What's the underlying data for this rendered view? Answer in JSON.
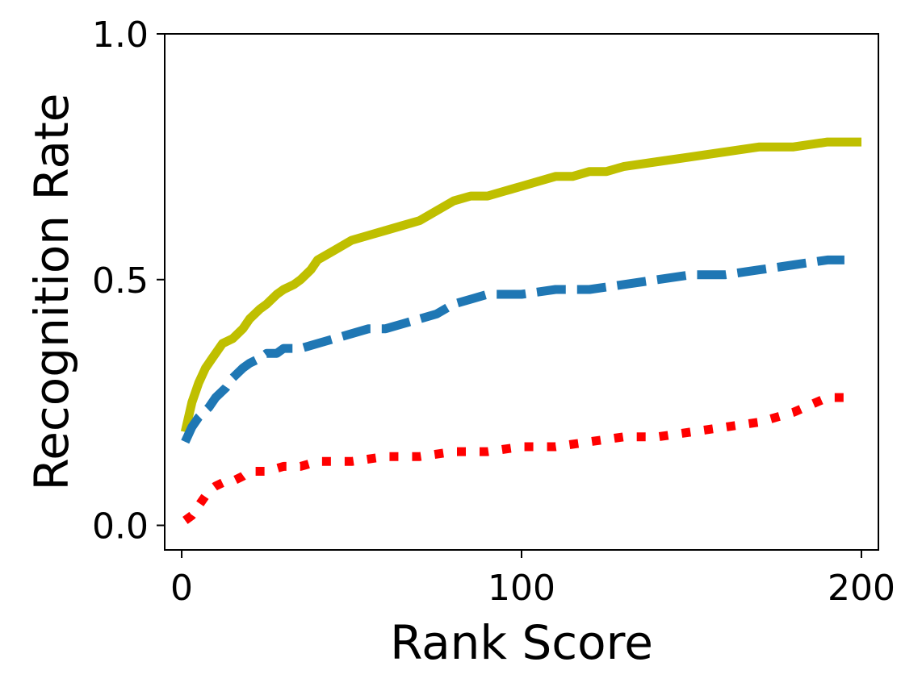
{
  "chart_data": {
    "type": "line",
    "title": "",
    "xlabel": "Rank Score",
    "ylabel": "Recognition Rate",
    "xlim": [
      -5,
      205
    ],
    "ylim": [
      -0.05,
      1.0
    ],
    "xticks": [
      0,
      100,
      200
    ],
    "xtick_labels": [
      "0",
      "100",
      "200"
    ],
    "yticks": [
      0.0,
      0.5,
      1.0
    ],
    "ytick_labels": [
      "0.0",
      "0.5",
      "1.0"
    ],
    "grid": false,
    "legend": "none",
    "series": [
      {
        "color": "#bfbf00",
        "style": "solid",
        "x": [
          1,
          3,
          5,
          7,
          9,
          12,
          15,
          18,
          20,
          23,
          25,
          28,
          30,
          33,
          35,
          38,
          40,
          45,
          50,
          55,
          60,
          65,
          70,
          75,
          80,
          85,
          90,
          95,
          100,
          105,
          110,
          115,
          120,
          125,
          130,
          140,
          150,
          160,
          170,
          180,
          190,
          200
        ],
        "y": [
          0.19,
          0.25,
          0.29,
          0.32,
          0.34,
          0.37,
          0.38,
          0.4,
          0.42,
          0.44,
          0.45,
          0.47,
          0.48,
          0.49,
          0.5,
          0.52,
          0.54,
          0.56,
          0.58,
          0.59,
          0.6,
          0.61,
          0.62,
          0.64,
          0.66,
          0.67,
          0.67,
          0.68,
          0.69,
          0.7,
          0.71,
          0.71,
          0.72,
          0.72,
          0.73,
          0.74,
          0.75,
          0.76,
          0.77,
          0.77,
          0.78,
          0.78
        ]
      },
      {
        "color": "#1f77b4",
        "style": "dashed",
        "x": [
          1,
          3,
          5,
          8,
          10,
          13,
          15,
          18,
          20,
          23,
          25,
          28,
          30,
          35,
          40,
          45,
          50,
          55,
          60,
          65,
          70,
          75,
          80,
          85,
          90,
          100,
          110,
          120,
          130,
          140,
          150,
          160,
          170,
          180,
          190,
          195
        ],
        "y": [
          0.17,
          0.2,
          0.22,
          0.24,
          0.26,
          0.28,
          0.3,
          0.32,
          0.33,
          0.34,
          0.35,
          0.35,
          0.36,
          0.36,
          0.37,
          0.38,
          0.39,
          0.4,
          0.4,
          0.41,
          0.42,
          0.43,
          0.45,
          0.46,
          0.47,
          0.47,
          0.48,
          0.48,
          0.49,
          0.5,
          0.51,
          0.51,
          0.52,
          0.53,
          0.54,
          0.54
        ]
      },
      {
        "color": "#ff0000",
        "style": "dotted",
        "x": [
          1,
          3,
          5,
          8,
          10,
          13,
          15,
          18,
          20,
          25,
          30,
          35,
          40,
          50,
          60,
          70,
          80,
          90,
          100,
          110,
          120,
          130,
          140,
          150,
          160,
          170,
          180,
          190,
          195
        ],
        "y": [
          0.01,
          0.02,
          0.04,
          0.07,
          0.08,
          0.09,
          0.09,
          0.1,
          0.11,
          0.11,
          0.12,
          0.12,
          0.13,
          0.13,
          0.14,
          0.14,
          0.15,
          0.15,
          0.16,
          0.16,
          0.17,
          0.18,
          0.18,
          0.19,
          0.2,
          0.21,
          0.23,
          0.26,
          0.26
        ]
      }
    ]
  }
}
